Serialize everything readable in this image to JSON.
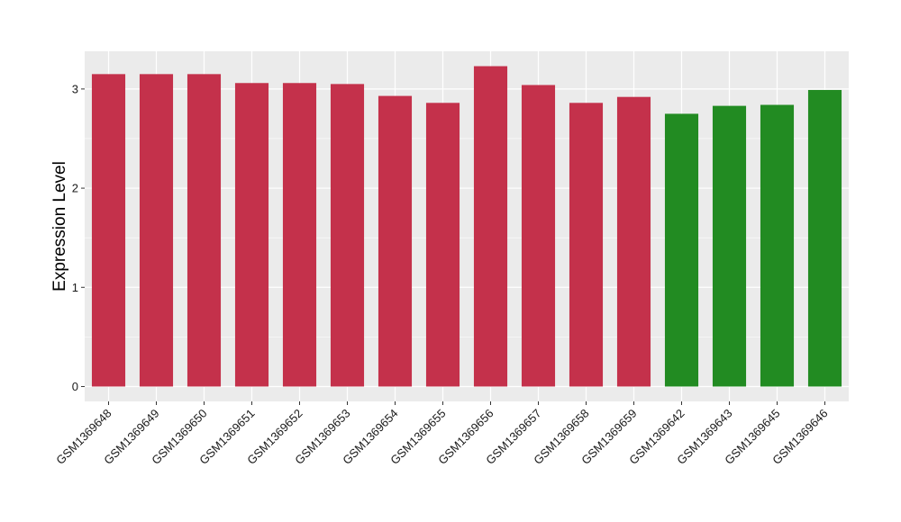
{
  "chart_data": {
    "type": "bar",
    "title": "",
    "xlabel": "",
    "ylabel": "Expression Level",
    "ylim": [
      -0.15,
      3.38
    ],
    "yticks": [
      0,
      1,
      2,
      3
    ],
    "grid": true,
    "legend": "none",
    "categories": [
      "GSM1369648",
      "GSM1369649",
      "GSM1369650",
      "GSM1369651",
      "GSM1369652",
      "GSM1369653",
      "GSM1369654",
      "GSM1369655",
      "GSM1369656",
      "GSM1369657",
      "GSM1369658",
      "GSM1369659",
      "GSM1369642",
      "GSM1369643",
      "GSM1369645",
      "GSM1369646"
    ],
    "values": [
      3.15,
      3.15,
      3.15,
      3.06,
      3.06,
      3.05,
      2.93,
      2.86,
      3.23,
      3.04,
      2.86,
      2.92,
      2.75,
      2.83,
      2.84,
      2.99
    ],
    "bar_colors": [
      "#c4314b",
      "#c4314b",
      "#c4314b",
      "#c4314b",
      "#c4314b",
      "#c4314b",
      "#c4314b",
      "#c4314b",
      "#c4314b",
      "#c4314b",
      "#c4314b",
      "#c4314b",
      "#228b22",
      "#228b22",
      "#228b22",
      "#228b22"
    ],
    "panel_background": "#ebebeb",
    "grid_color": "#ffffff"
  }
}
